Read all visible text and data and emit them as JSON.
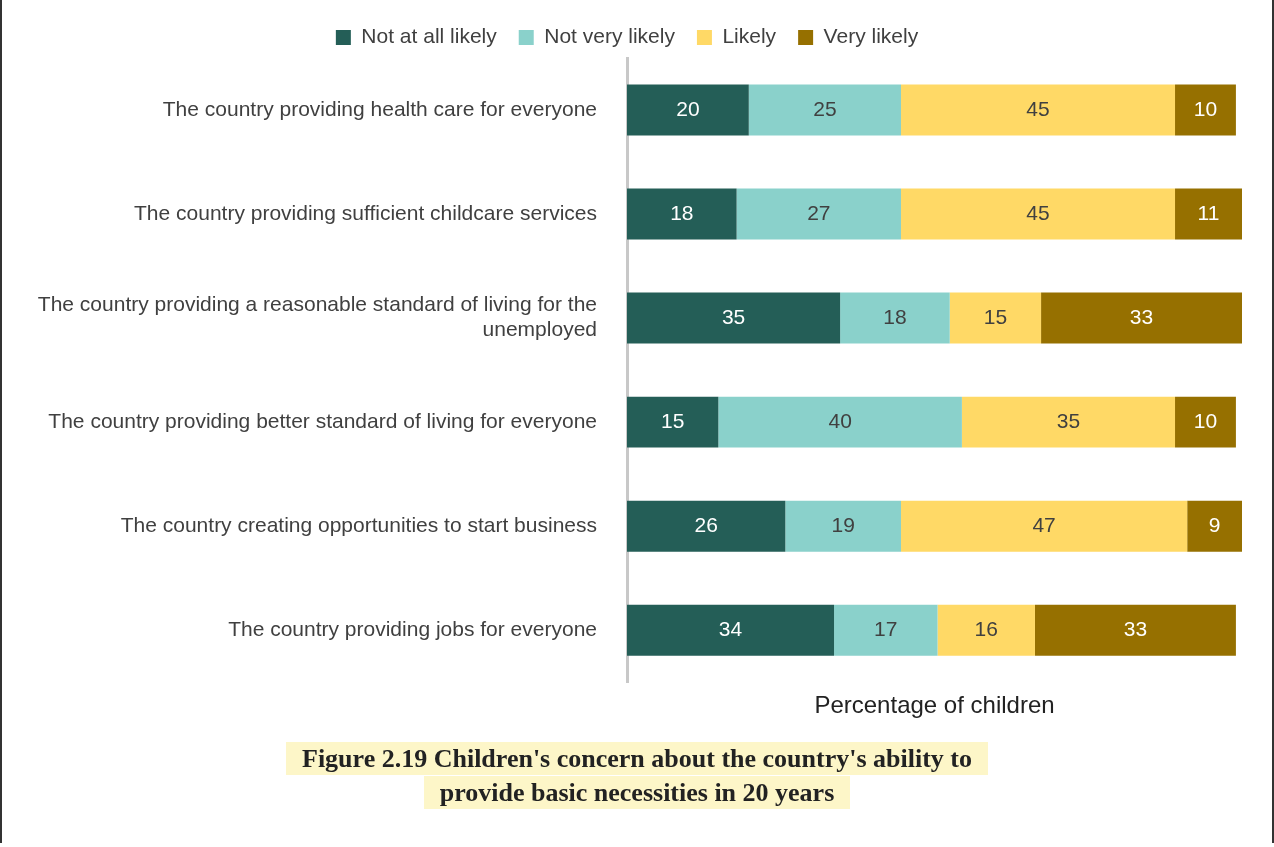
{
  "chart_data": {
    "type": "bar",
    "orientation": "horizontal",
    "stacked": true,
    "title": "Figure 2.19 Children's concern about the country's ability to provide basic necessities in 20 years",
    "xlabel": "Percentage of children",
    "categories": [
      "The country providing health care for everyone",
      "The country providing sufficient childcare services",
      "The country providing a reasonable standard of living for the unemployed",
      "The country providing better standard of living for everyone",
      "The country creating opportunities to start business",
      "The country providing jobs for everyone"
    ],
    "series": [
      {
        "name": "Not at all likely",
        "color": "#245e57",
        "values": [
          20,
          18,
          35,
          15,
          26,
          34
        ]
      },
      {
        "name": "Not very likely",
        "color": "#8ad1cb",
        "values": [
          25,
          27,
          18,
          40,
          19,
          17
        ]
      },
      {
        "name": "Likely",
        "color": "#ffd966",
        "values": [
          45,
          45,
          15,
          35,
          47,
          16
        ]
      },
      {
        "name": "Very likely",
        "color": "#967000",
        "values": [
          10,
          11,
          33,
          10,
          9,
          33
        ]
      }
    ],
    "xlim": [
      0,
      101
    ],
    "data_labels": true,
    "legend": "top",
    "tick_labels": "y"
  }
}
